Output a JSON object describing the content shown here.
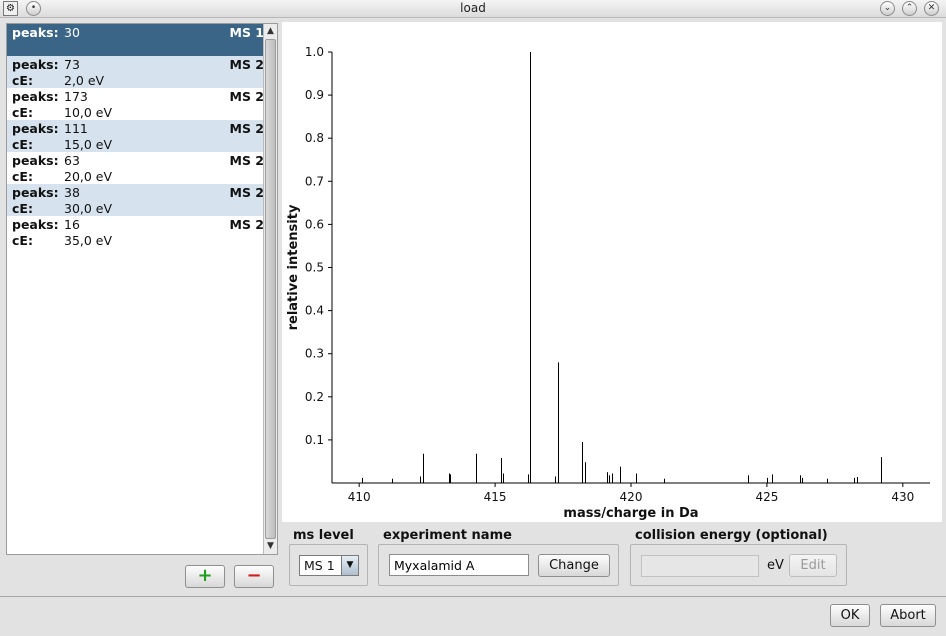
{
  "window": {
    "title": "load"
  },
  "spectra_list": [
    {
      "peaks": "30",
      "ce": "",
      "ms": "MS 1",
      "style": "sel"
    },
    {
      "peaks": "73",
      "ce": "2,0 eV",
      "ms": "MS 2",
      "style": "alt"
    },
    {
      "peaks": "173",
      "ce": "10,0 eV",
      "ms": "MS 2",
      "style": ""
    },
    {
      "peaks": "111",
      "ce": "15,0 eV",
      "ms": "MS 2",
      "style": "alt"
    },
    {
      "peaks": "63",
      "ce": "20,0 eV",
      "ms": "MS 2",
      "style": ""
    },
    {
      "peaks": "38",
      "ce": "30,0 eV",
      "ms": "MS 2",
      "style": "alt"
    },
    {
      "peaks": "16",
      "ce": "35,0 eV",
      "ms": "MS 2",
      "style": ""
    }
  ],
  "list_labels": {
    "peaks": "peaks:",
    "ce": "cE:"
  },
  "list_buttons": {
    "add": "+",
    "remove": "−"
  },
  "colors": {
    "selected": "#3a6587",
    "alternate": "#d6e3ee",
    "add_icon": "#1ea01e",
    "remove_icon": "#d21a1a"
  },
  "chart_data": {
    "type": "bar",
    "xlabel": "mass/charge in Da",
    "ylabel": "relative intensity",
    "xlim": [
      409,
      431
    ],
    "ylim": [
      0,
      1.0
    ],
    "x_ticks": [
      410,
      415,
      420,
      425,
      430
    ],
    "y_ticks": [
      0.1,
      0.2,
      0.3,
      0.4,
      0.5,
      0.6,
      0.7,
      0.8,
      0.9,
      1.0
    ],
    "grid": false,
    "peaks": [
      {
        "mz": 410.1,
        "intensity": 0.012
      },
      {
        "mz": 411.2,
        "intensity": 0.01
      },
      {
        "mz": 412.25,
        "intensity": 0.015
      },
      {
        "mz": 412.33,
        "intensity": 0.068
      },
      {
        "mz": 413.3,
        "intensity": 0.022
      },
      {
        "mz": 413.35,
        "intensity": 0.02
      },
      {
        "mz": 414.3,
        "intensity": 0.068
      },
      {
        "mz": 415.2,
        "intensity": 0.058
      },
      {
        "mz": 415.3,
        "intensity": 0.022
      },
      {
        "mz": 416.2,
        "intensity": 0.02
      },
      {
        "mz": 416.3,
        "intensity": 1.0
      },
      {
        "mz": 417.2,
        "intensity": 0.015
      },
      {
        "mz": 417.3,
        "intensity": 0.28
      },
      {
        "mz": 418.2,
        "intensity": 0.095
      },
      {
        "mz": 418.3,
        "intensity": 0.048
      },
      {
        "mz": 419.1,
        "intensity": 0.025
      },
      {
        "mz": 419.2,
        "intensity": 0.018
      },
      {
        "mz": 419.3,
        "intensity": 0.022
      },
      {
        "mz": 419.6,
        "intensity": 0.038
      },
      {
        "mz": 420.2,
        "intensity": 0.022
      },
      {
        "mz": 421.2,
        "intensity": 0.01
      },
      {
        "mz": 424.3,
        "intensity": 0.018
      },
      {
        "mz": 425.0,
        "intensity": 0.012
      },
      {
        "mz": 425.2,
        "intensity": 0.02
      },
      {
        "mz": 426.2,
        "intensity": 0.018
      },
      {
        "mz": 426.3,
        "intensity": 0.012
      },
      {
        "mz": 427.2,
        "intensity": 0.01
      },
      {
        "mz": 428.2,
        "intensity": 0.012
      },
      {
        "mz": 428.3,
        "intensity": 0.014
      },
      {
        "mz": 429.2,
        "intensity": 0.06
      }
    ]
  },
  "ms_level": {
    "label": "ms level",
    "value": "MS 1"
  },
  "experiment": {
    "label": "experiment name",
    "value": "Myxalamid A",
    "change_button": "Change"
  },
  "collision": {
    "label": "collision energy (optional)",
    "value": "",
    "unit": "eV",
    "edit_button": "Edit"
  },
  "footer": {
    "ok": "OK",
    "abort": "Abort"
  }
}
